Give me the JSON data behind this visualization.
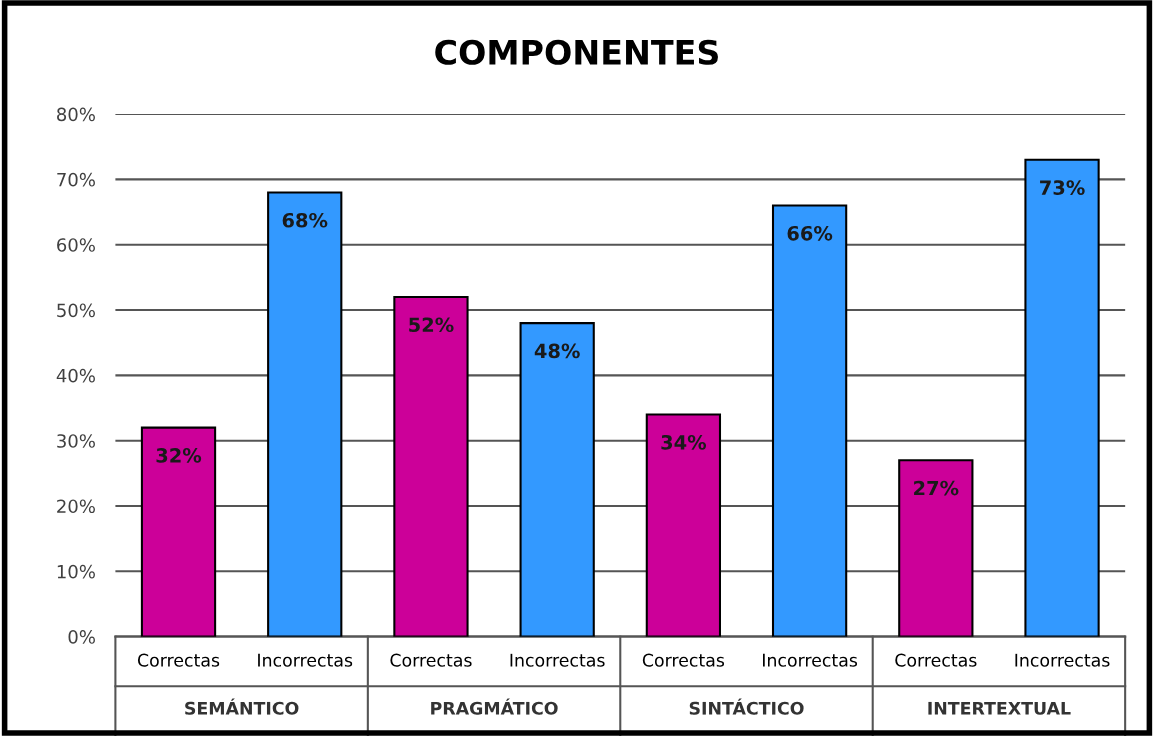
{
  "chart_data": {
    "type": "bar",
    "title": "COMPONENTES",
    "categories": [
      "Correctas",
      "Incorrectas",
      "Correctas",
      "Incorrectas",
      "Correctas",
      "Incorrectas",
      "Correctas",
      "Incorrectas"
    ],
    "values": [
      32,
      68,
      52,
      48,
      34,
      66,
      27,
      73
    ],
    "colors": [
      "#cc0099",
      "#3399ff",
      "#cc0099",
      "#3399ff",
      "#cc0099",
      "#3399ff",
      "#cc0099",
      "#3399ff"
    ],
    "value_labels": [
      "32%",
      "68%",
      "52%",
      "48%",
      "34%",
      "66%",
      "27%",
      "73%"
    ],
    "annotations": [
      "SEMÁNTICO",
      "PRAGMÁTICO",
      "SINTÁCTICO",
      "INTERTEXTUAL"
    ],
    "ylim": [
      0,
      80
    ],
    "yticks": [
      {
        "value": 0,
        "label": "0%"
      },
      {
        "value": 10,
        "label": "10%"
      },
      {
        "value": 20,
        "label": "20%"
      },
      {
        "value": 30,
        "label": "30%"
      },
      {
        "value": 40,
        "label": "40%"
      },
      {
        "value": 50,
        "label": "50%"
      },
      {
        "value": 60,
        "label": "60%"
      },
      {
        "value": 70,
        "label": "70%"
      },
      {
        "value": 80,
        "label": "80%"
      }
    ],
    "grid": "y"
  }
}
